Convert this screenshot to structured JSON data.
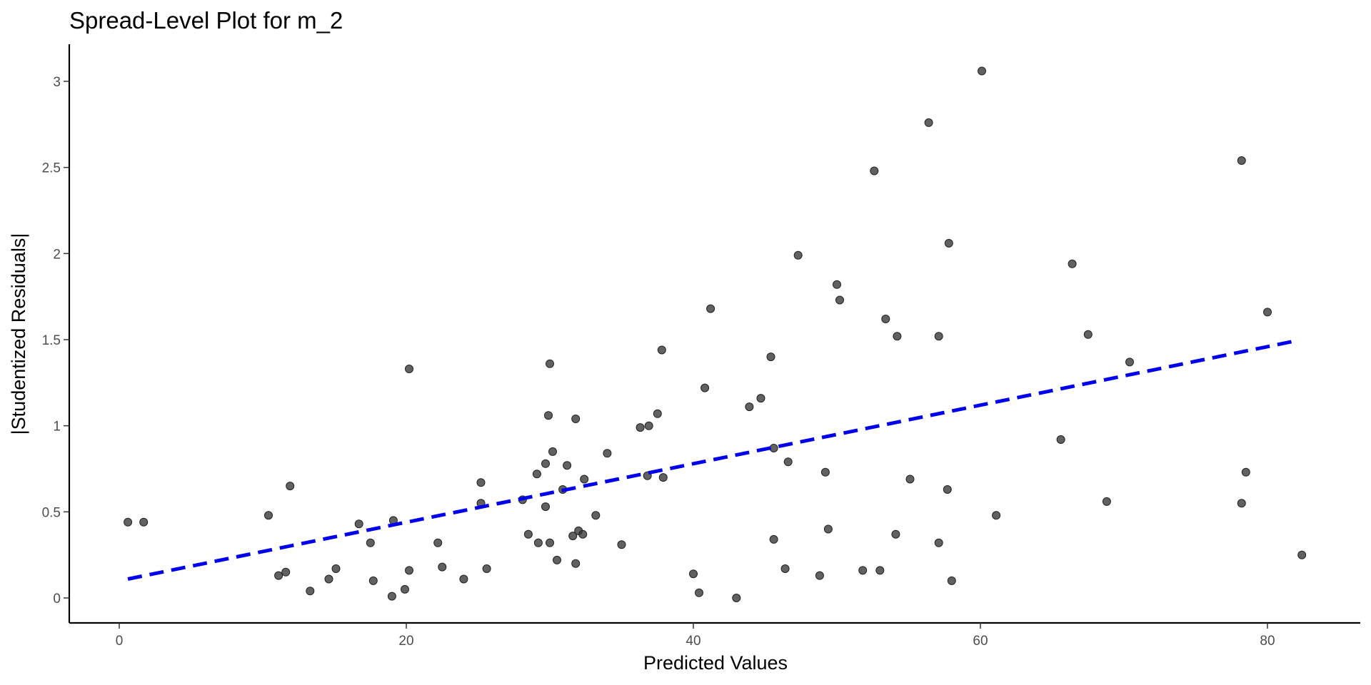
{
  "chart_data": {
    "type": "scatter",
    "title": "Spread-Level Plot for m_2",
    "xlabel": "Predicted Values",
    "ylabel": "|Studentized Residuals|",
    "xlim": [
      -4,
      86.5
    ],
    "ylim": [
      -0.15,
      3.2
    ],
    "x_ticks": [
      0,
      20,
      40,
      60,
      80
    ],
    "y_ticks": [
      0,
      0.5,
      1,
      1.5,
      2,
      2.5,
      3
    ],
    "x_tick_labels": [
      "0",
      "20",
      "40",
      "60",
      "80"
    ],
    "y_tick_labels": [
      "0",
      "0.5",
      "1",
      "1.5",
      "2",
      "2.5",
      "3"
    ],
    "grid": false,
    "point_color": "#3a3a3a",
    "line_color": "#0000ee",
    "series": [
      {
        "type": "scatter",
        "points": [
          [
            0.6,
            0.44
          ],
          [
            1.7,
            0.44
          ],
          [
            10.4,
            0.48
          ],
          [
            11.1,
            0.13
          ],
          [
            11.6,
            0.15
          ],
          [
            11.9,
            0.65
          ],
          [
            13.3,
            0.04
          ],
          [
            14.6,
            0.11
          ],
          [
            15.1,
            0.17
          ],
          [
            16.7,
            0.43
          ],
          [
            17.5,
            0.32
          ],
          [
            17.7,
            0.1
          ],
          [
            19.0,
            0.01
          ],
          [
            19.1,
            0.45
          ],
          [
            19.9,
            0.05
          ],
          [
            20.2,
            0.16
          ],
          [
            20.2,
            1.33
          ],
          [
            22.2,
            0.32
          ],
          [
            22.5,
            0.18
          ],
          [
            24.0,
            0.11
          ],
          [
            25.2,
            0.67
          ],
          [
            25.2,
            0.55
          ],
          [
            25.6,
            0.17
          ],
          [
            28.1,
            0.57
          ],
          [
            28.5,
            0.37
          ],
          [
            29.1,
            0.72
          ],
          [
            29.2,
            0.32
          ],
          [
            29.7,
            0.78
          ],
          [
            29.7,
            0.53
          ],
          [
            29.9,
            1.06
          ],
          [
            30.0,
            1.36
          ],
          [
            30.0,
            0.32
          ],
          [
            30.2,
            0.85
          ],
          [
            30.5,
            0.22
          ],
          [
            30.9,
            0.63
          ],
          [
            31.2,
            0.77
          ],
          [
            31.6,
            0.36
          ],
          [
            31.8,
            0.2
          ],
          [
            31.8,
            1.04
          ],
          [
            32.0,
            0.39
          ],
          [
            32.3,
            0.37
          ],
          [
            32.4,
            0.69
          ],
          [
            33.2,
            0.48
          ],
          [
            34.0,
            0.84
          ],
          [
            35.0,
            0.31
          ],
          [
            36.3,
            0.99
          ],
          [
            36.8,
            0.71
          ],
          [
            36.9,
            1.0
          ],
          [
            37.5,
            1.07
          ],
          [
            37.8,
            1.44
          ],
          [
            37.9,
            0.7
          ],
          [
            40.0,
            0.14
          ],
          [
            40.4,
            0.03
          ],
          [
            40.8,
            1.22
          ],
          [
            41.2,
            1.68
          ],
          [
            43.0,
            0.0
          ],
          [
            43.9,
            1.11
          ],
          [
            44.7,
            1.16
          ],
          [
            45.4,
            1.4
          ],
          [
            45.6,
            0.87
          ],
          [
            45.6,
            0.34
          ],
          [
            46.4,
            0.17
          ],
          [
            46.6,
            0.79
          ],
          [
            47.3,
            1.99
          ],
          [
            48.8,
            0.13
          ],
          [
            49.2,
            0.73
          ],
          [
            49.4,
            0.4
          ],
          [
            50.0,
            1.82
          ],
          [
            50.2,
            1.73
          ],
          [
            51.8,
            0.16
          ],
          [
            52.6,
            2.48
          ],
          [
            53.0,
            0.16
          ],
          [
            53.4,
            1.62
          ],
          [
            54.1,
            0.37
          ],
          [
            54.2,
            1.52
          ],
          [
            55.1,
            0.69
          ],
          [
            56.4,
            2.76
          ],
          [
            57.1,
            0.32
          ],
          [
            57.1,
            1.52
          ],
          [
            57.7,
            0.63
          ],
          [
            57.8,
            2.06
          ],
          [
            58.0,
            0.1
          ],
          [
            60.1,
            3.06
          ],
          [
            61.1,
            0.48
          ],
          [
            65.6,
            0.92
          ],
          [
            66.4,
            1.94
          ],
          [
            67.5,
            1.53
          ],
          [
            68.8,
            0.56
          ],
          [
            70.4,
            1.37
          ],
          [
            78.2,
            2.54
          ],
          [
            78.2,
            0.55
          ],
          [
            78.5,
            0.73
          ],
          [
            80.0,
            1.66
          ],
          [
            82.4,
            0.25
          ]
        ]
      },
      {
        "type": "line",
        "style": "dashed",
        "points": [
          [
            0.6,
            0.11
          ],
          [
            81.8,
            1.49
          ]
        ]
      }
    ]
  }
}
